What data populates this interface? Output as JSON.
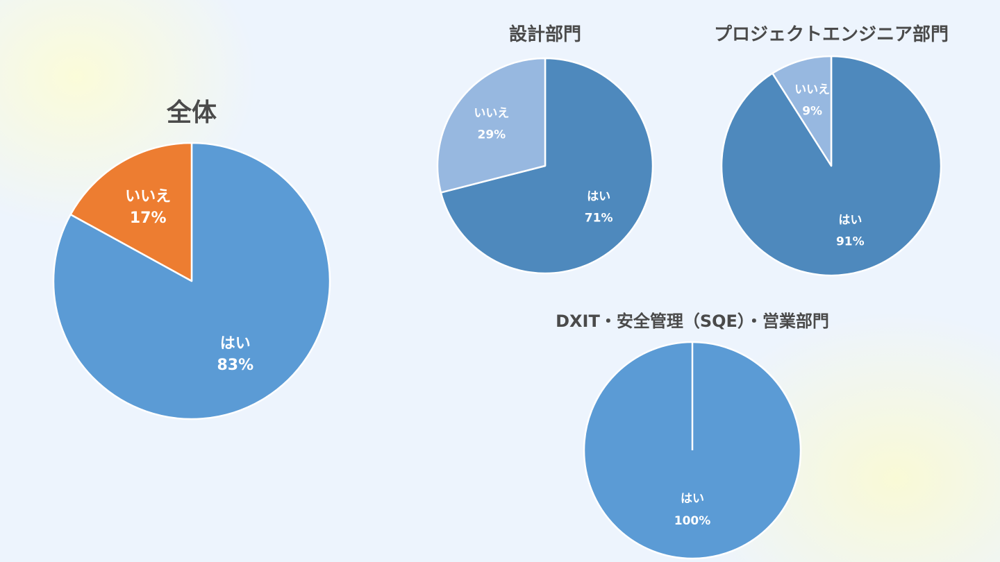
{
  "chart_data": [
    {
      "type": "pie",
      "title": "全体",
      "slices": [
        {
          "label": "はい",
          "value": 83,
          "value_text": "83%",
          "color": "#5b9bd5",
          "text_color": "#ffffff"
        },
        {
          "label": "いいえ",
          "value": 17,
          "value_text": "17%",
          "color": "#ed7d31",
          "text_color": "#ffffff"
        }
      ]
    },
    {
      "type": "pie",
      "title": "設計部門",
      "slices": [
        {
          "label": "はい",
          "value": 71,
          "value_text": "71%",
          "color": "#4e89bd",
          "text_color": "#ffffff"
        },
        {
          "label": "いいえ",
          "value": 29,
          "value_text": "29%",
          "color": "#97b8e0",
          "text_color": "#ffffff"
        }
      ]
    },
    {
      "type": "pie",
      "title": "プロジェクトエンジニア部門",
      "slices": [
        {
          "label": "はい",
          "value": 91,
          "value_text": "91%",
          "color": "#4e89bd",
          "text_color": "#ffffff"
        },
        {
          "label": "いいえ",
          "value": 9,
          "value_text": "9%",
          "color": "#97b8e0",
          "text_color": "#ffffff"
        }
      ]
    },
    {
      "type": "pie",
      "title": "DXIT・安全管理（SQE）・営業部門",
      "slices": [
        {
          "label": "はい",
          "value": 100,
          "value_text": "100%",
          "color": "#5b9bd5",
          "text_color": "#ffffff"
        }
      ]
    }
  ]
}
